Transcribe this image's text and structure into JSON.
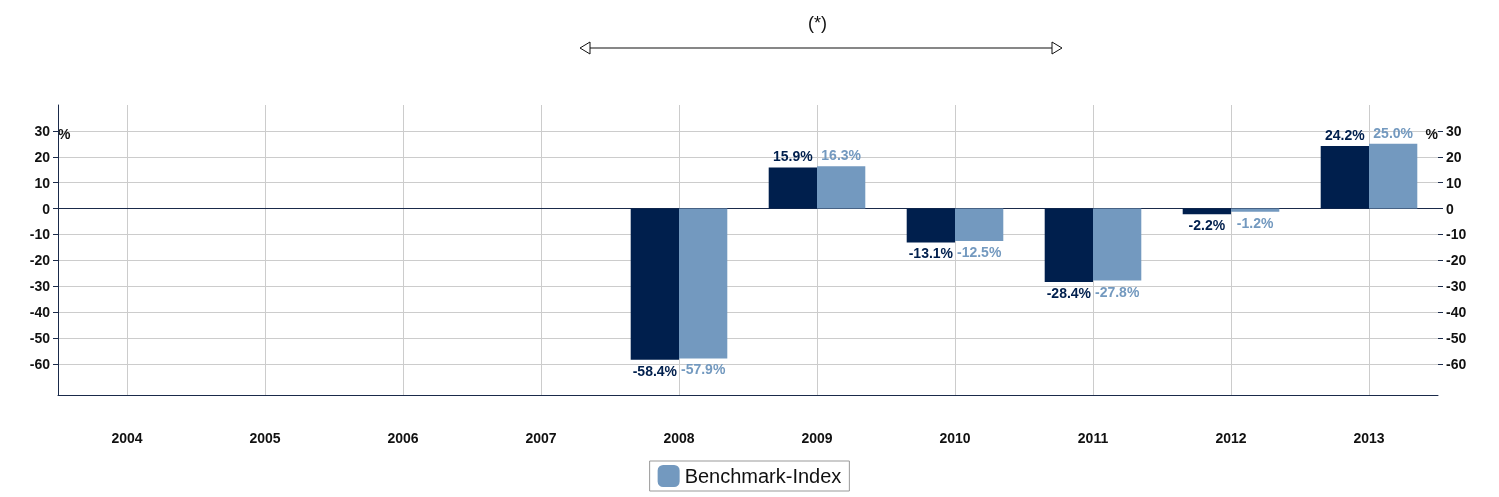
{
  "chart_data": {
    "type": "bar",
    "categories": [
      "2004",
      "2005",
      "2006",
      "2007",
      "2008",
      "2009",
      "2010",
      "2011",
      "2012",
      "2013"
    ],
    "series": [
      {
        "color": "#001f4d",
        "values": [
          null,
          null,
          null,
          null,
          -58.4,
          15.9,
          -13.1,
          -28.4,
          -2.2,
          24.2
        ],
        "value_labels": [
          null,
          null,
          null,
          null,
          "-58.4%",
          "15.9%",
          "-13.1%",
          "-28.4%",
          "-2.2%",
          "24.2%"
        ]
      },
      {
        "name": "Benchmark-Index",
        "color": "#7399bf",
        "values": [
          null,
          null,
          null,
          null,
          -57.9,
          16.3,
          -12.5,
          -27.8,
          -1.2,
          25.0
        ],
        "value_labels": [
          null,
          null,
          null,
          null,
          "-57.9%",
          "16.3%",
          "-12.5%",
          "-27.8%",
          "-1.2%",
          "25.0%"
        ]
      }
    ],
    "ylabel": "%",
    "y2label": "%",
    "ylim": [
      -72,
      40
    ],
    "yticks": [
      -60,
      -50,
      -40,
      -30,
      -20,
      -10,
      0,
      10,
      20,
      30
    ],
    "y2lim": [
      -72,
      40
    ],
    "y2ticks": [
      -60,
      -50,
      -40,
      -30,
      -20,
      -10,
      0,
      10,
      20,
      30
    ],
    "annotations": [
      "(*)"
    ],
    "grid": true,
    "legend": "bottom"
  }
}
